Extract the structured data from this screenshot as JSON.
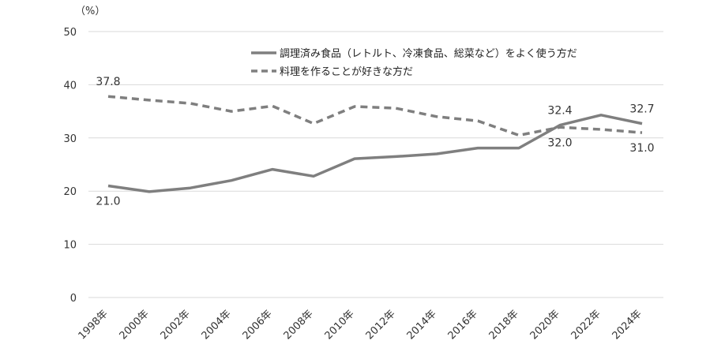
{
  "chart_data": {
    "type": "line",
    "unit_label": "（%）",
    "categories": [
      "1998年",
      "2000年",
      "2002年",
      "2004年",
      "2006年",
      "2008年",
      "2010年",
      "2012年",
      "2014年",
      "2016年",
      "2018年",
      "2020年",
      "2022年",
      "2024年"
    ],
    "ylim": [
      0,
      50
    ],
    "yticks": [
      0,
      10,
      20,
      30,
      40,
      50
    ],
    "grid": true,
    "legend_position": "top-right",
    "series": [
      {
        "name": "調理済み食品（レトルト、冷凍食品、総菜など）をよく使う方だ",
        "style": "solid",
        "color": "#7f7f7f",
        "values": [
          21.0,
          19.9,
          20.6,
          22.0,
          24.1,
          22.8,
          26.1,
          26.5,
          27.0,
          28.1,
          28.1,
          32.4,
          34.3,
          32.7
        ]
      },
      {
        "name": "料理を作ることが好きな方だ",
        "style": "dashed",
        "color": "#7f7f7f",
        "values": [
          37.8,
          37.1,
          36.5,
          35.0,
          36.0,
          32.7,
          35.9,
          35.6,
          34.0,
          33.2,
          30.5,
          32.0,
          31.6,
          31.0
        ]
      }
    ],
    "data_labels": [
      {
        "series": 0,
        "index": 0,
        "text": "21.0"
      },
      {
        "series": 0,
        "index": 11,
        "text": "32.4"
      },
      {
        "series": 0,
        "index": 13,
        "text": "32.7"
      },
      {
        "series": 1,
        "index": 0,
        "text": "37.8"
      },
      {
        "series": 1,
        "index": 11,
        "text": "32.0"
      },
      {
        "series": 1,
        "index": 13,
        "text": "31.0"
      }
    ]
  }
}
